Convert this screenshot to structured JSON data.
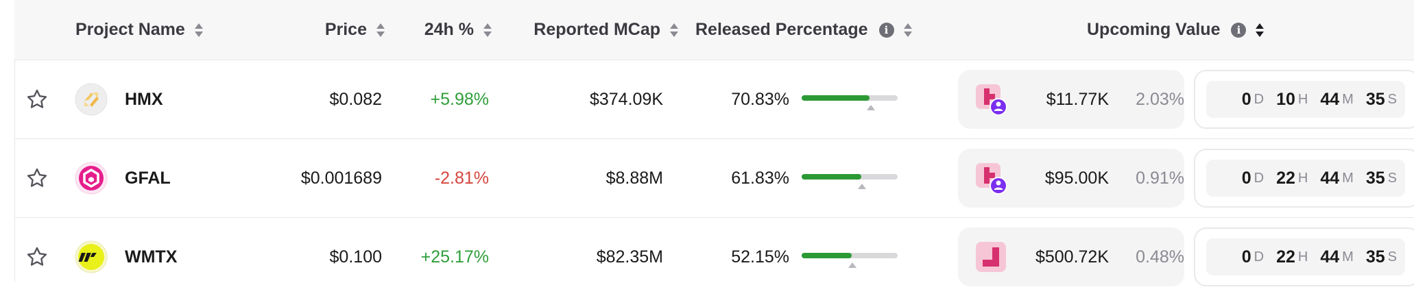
{
  "columns": {
    "project_name": "Project Name",
    "price": "Price",
    "change_24h": "24h %",
    "reported_mcap": "Reported MCap",
    "released_percentage": "Released Percentage",
    "upcoming_value": "Upcoming Value"
  },
  "countdown_units": {
    "d": "D",
    "h": "H",
    "m": "M",
    "s": "S"
  },
  "rows": [
    {
      "name": "HMX",
      "logo_icon": "hmx-logo-icon",
      "price": "$0.082",
      "change": "+5.98%",
      "change_dir": "up",
      "mcap": "$374.09K",
      "released": "70.83%",
      "released_fraction": 0.7083,
      "marker_fraction": 0.72,
      "upcoming_icon": "unlock-with-user-icon",
      "upcoming_value": "$11.77K",
      "upcoming_pct": "2.03%",
      "countdown": {
        "d": "0",
        "h": "10",
        "m": "44",
        "s": "35"
      }
    },
    {
      "name": "GFAL",
      "logo_icon": "gfal-logo-icon",
      "price": "$0.001689",
      "change": "-2.81%",
      "change_dir": "down",
      "mcap": "$8.88M",
      "released": "61.83%",
      "released_fraction": 0.6183,
      "marker_fraction": 0.63,
      "upcoming_icon": "unlock-with-user-icon",
      "upcoming_value": "$95.00K",
      "upcoming_pct": "0.91%",
      "countdown": {
        "d": "0",
        "h": "22",
        "m": "44",
        "s": "35"
      }
    },
    {
      "name": "WMTX",
      "logo_icon": "wmtx-logo-icon",
      "price": "$0.100",
      "change": "+25.17%",
      "change_dir": "up",
      "mcap": "$82.35M",
      "released": "52.15%",
      "released_fraction": 0.5215,
      "marker_fraction": 0.53,
      "upcoming_icon": "unlock-icon",
      "upcoming_value": "$500.72K",
      "upcoming_pct": "0.48%",
      "countdown": {
        "d": "0",
        "h": "22",
        "m": "44",
        "s": "35"
      }
    }
  ],
  "colors": {
    "positive": "#2f9e3a",
    "negative": "#d6453d",
    "bar_fill": "#2c9a34",
    "unlock_accent": "#d6306e",
    "user_badge": "#7b2ff0"
  }
}
